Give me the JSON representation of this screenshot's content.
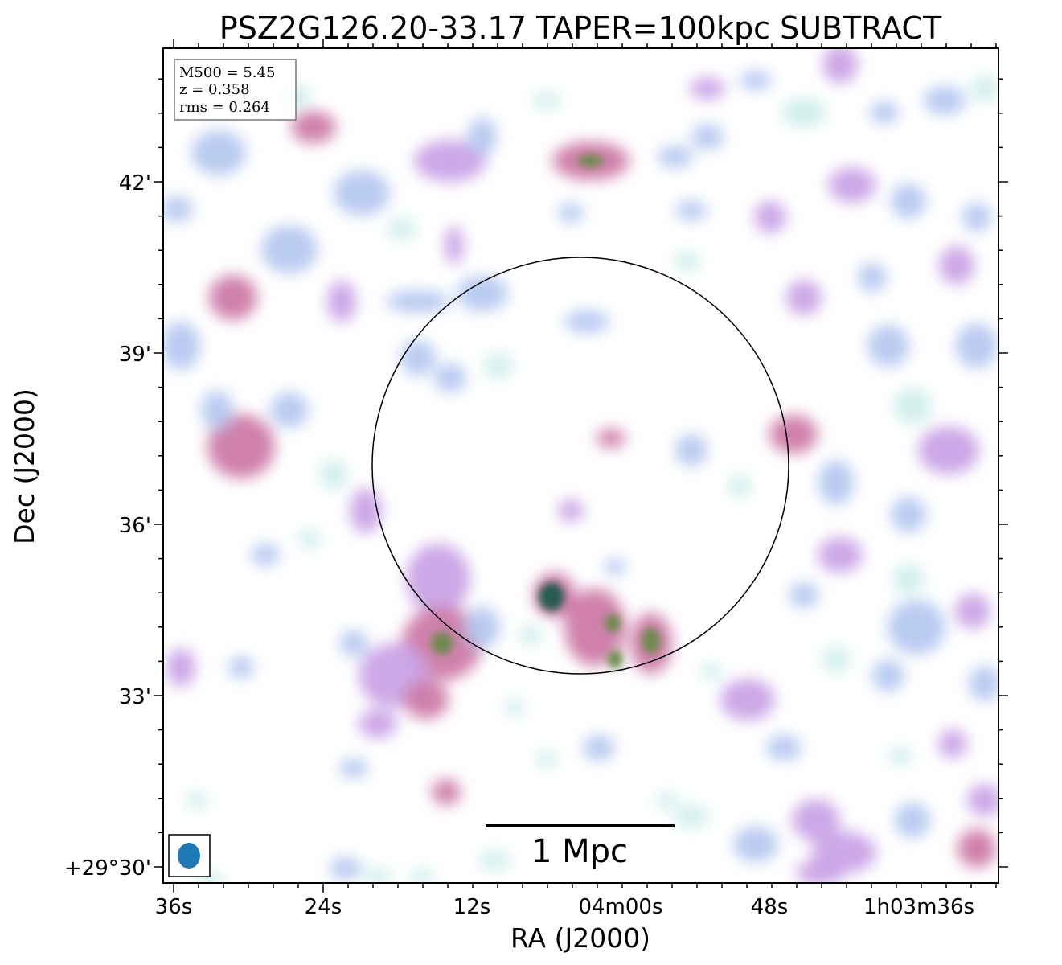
{
  "figure": {
    "title": "PSZ2G126.20-33.17 TAPER=100kpc SUBTRACT",
    "xlabel": "RA (J2000)",
    "ylabel": "Dec (J2000)"
  },
  "info_box": {
    "line1": "M500 = 5.45",
    "line2": "z = 0.358",
    "line3": "rms = 0.264"
  },
  "scalebar": {
    "label": "1 Mpc"
  },
  "ra_ticks": [
    "36s",
    "24s",
    "12s",
    "04m00s",
    "48s",
    "1h03m36s"
  ],
  "dec_ticks": [
    "42'",
    "39'",
    "36'",
    "33'",
    "+29°30'"
  ],
  "colors": {
    "faint": "#cfeeea",
    "low": "#b5c8f0",
    "mid": "#c9a3e6",
    "high": "#cc7aa8",
    "peak": "#6a8a4a",
    "core": "#1f5a4a",
    "beam": "#1f77b4"
  }
}
